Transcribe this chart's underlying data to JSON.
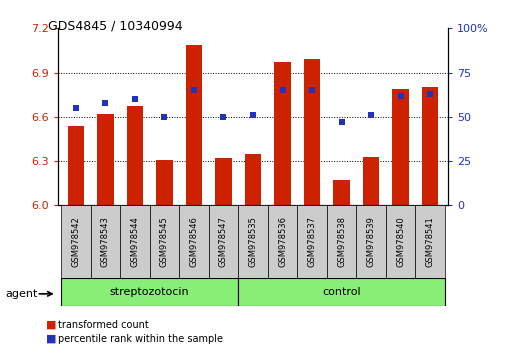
{
  "title": "GDS4845 / 10340994",
  "samples": [
    "GSM978542",
    "GSM978543",
    "GSM978544",
    "GSM978545",
    "GSM978546",
    "GSM978547",
    "GSM978535",
    "GSM978536",
    "GSM978537",
    "GSM978538",
    "GSM978539",
    "GSM978540",
    "GSM978541"
  ],
  "red_values": [
    6.54,
    6.62,
    6.67,
    6.31,
    7.09,
    6.32,
    6.35,
    6.97,
    6.99,
    6.17,
    6.33,
    6.79,
    6.8
  ],
  "blue_values": [
    55,
    58,
    60,
    50,
    65,
    50,
    51,
    65,
    65,
    47,
    51,
    62,
    63
  ],
  "ylim_left": [
    6.0,
    7.2
  ],
  "ylim_right": [
    0,
    100
  ],
  "yticks_left": [
    6.0,
    6.3,
    6.6,
    6.9,
    7.2
  ],
  "yticks_right": [
    0,
    25,
    50,
    75,
    100
  ],
  "group1_label": "streptozotocin",
  "group1_count": 6,
  "group2_label": "control",
  "group2_count": 7,
  "agent_label": "agent",
  "legend_red": "transformed count",
  "legend_blue": "percentile rank within the sample",
  "red_color": "#cc2200",
  "blue_color": "#2233bb",
  "group_bg": "#88ee77",
  "bar_width": 0.55,
  "base": 6.0,
  "grid_lines": [
    6.3,
    6.6,
    6.9
  ]
}
